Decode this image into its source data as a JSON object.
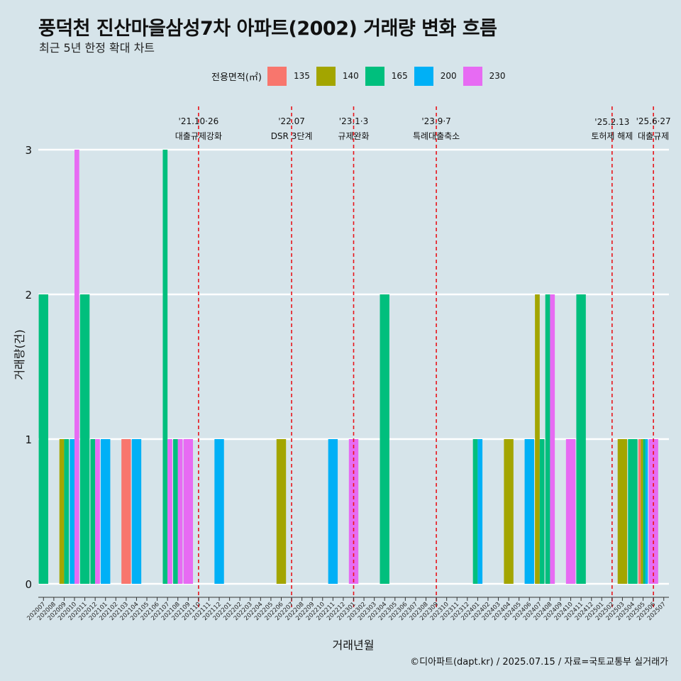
{
  "title": "풍덕천 진산마을삼성7차 아파트(2002) 거래량 변화 흐름",
  "subtitle": "최근 5년 한정 확대 차트",
  "footer": "©디아파트(dapt.kr) / 2025.07.15 / 자료=국토교통부 실거래가",
  "legend": {
    "title": "전용면적(㎡)",
    "items": [
      {
        "label": "135",
        "color": "#f8766d"
      },
      {
        "label": "140",
        "color": "#a3a500"
      },
      {
        "label": "165",
        "color": "#00bf7d"
      },
      {
        "label": "200",
        "color": "#00b0f6"
      },
      {
        "label": "230",
        "color": "#e76bf3"
      }
    ]
  },
  "chart_data": {
    "type": "bar",
    "xlabel": "거래년월",
    "ylabel": "거래량(건)",
    "ylim": [
      0,
      3
    ],
    "yticks": [
      0,
      1,
      2,
      3
    ],
    "grid": true,
    "legend_position": "top",
    "categories": [
      "202007",
      "202008",
      "202009",
      "202010",
      "202011",
      "202012",
      "202101",
      "202102",
      "202103",
      "202104",
      "202105",
      "202106",
      "202107",
      "202108",
      "202109",
      "202110",
      "202111",
      "202112",
      "202201",
      "202202",
      "202203",
      "202204",
      "202205",
      "202206",
      "202207",
      "202208",
      "202209",
      "202210",
      "202211",
      "202212",
      "202301",
      "202302",
      "202303",
      "202304",
      "202305",
      "202306",
      "202307",
      "202308",
      "202309",
      "202310",
      "202311",
      "202312",
      "202401",
      "202402",
      "202403",
      "202404",
      "202405",
      "202406",
      "202407",
      "202408",
      "202409",
      "202410",
      "202411",
      "202412",
      "202501",
      "202502",
      "202503",
      "202504",
      "202505",
      "202506",
      "202507"
    ],
    "series": [
      {
        "name": "135",
        "color": "#f8766d",
        "points": [
          {
            "x": "202103",
            "y": 1
          },
          {
            "x": "202505",
            "y": 1
          }
        ]
      },
      {
        "name": "140",
        "color": "#a3a500",
        "points": [
          {
            "x": "202009",
            "y": 1
          },
          {
            "x": "202206",
            "y": 1
          },
          {
            "x": "202404",
            "y": 1
          },
          {
            "x": "202407",
            "y": 2
          },
          {
            "x": "202503",
            "y": 1
          },
          {
            "x": "202505",
            "y": 1
          }
        ]
      },
      {
        "name": "165",
        "color": "#00bf7d",
        "points": [
          {
            "x": "202007",
            "y": 2
          },
          {
            "x": "202009",
            "y": 1
          },
          {
            "x": "202011",
            "y": 2
          },
          {
            "x": "202012",
            "y": 1
          },
          {
            "x": "202107",
            "y": 3
          },
          {
            "x": "202108",
            "y": 1
          },
          {
            "x": "202304",
            "y": 2
          },
          {
            "x": "202401",
            "y": 1
          },
          {
            "x": "202407",
            "y": 1
          },
          {
            "x": "202408",
            "y": 2
          },
          {
            "x": "202411",
            "y": 2
          },
          {
            "x": "202504",
            "y": 1
          },
          {
            "x": "202505",
            "y": 1
          }
        ]
      },
      {
        "name": "200",
        "color": "#00b0f6",
        "points": [
          {
            "x": "202010",
            "y": 1
          },
          {
            "x": "202101",
            "y": 1
          },
          {
            "x": "202104",
            "y": 1
          },
          {
            "x": "202112",
            "y": 1
          },
          {
            "x": "202211",
            "y": 1
          },
          {
            "x": "202401",
            "y": 1
          },
          {
            "x": "202406",
            "y": 1
          },
          {
            "x": "202505",
            "y": 1
          }
        ]
      },
      {
        "name": "230",
        "color": "#e76bf3",
        "points": [
          {
            "x": "202010",
            "y": 3
          },
          {
            "x": "202012",
            "y": 1
          },
          {
            "x": "202107",
            "y": 1
          },
          {
            "x": "202108",
            "y": 1
          },
          {
            "x": "202109",
            "y": 1
          },
          {
            "x": "202301",
            "y": 1
          },
          {
            "x": "202408",
            "y": 2
          },
          {
            "x": "202410",
            "y": 1
          },
          {
            "x": "202506",
            "y": 1
          }
        ]
      }
    ],
    "events": [
      {
        "x": "202110",
        "date": "'21.10·26",
        "label": "대출규제강화"
      },
      {
        "x": "202207",
        "date": "'22.07",
        "label": "DSR 3단계"
      },
      {
        "x": "202301",
        "date": "'23.1·3",
        "label": "규제완화"
      },
      {
        "x": "202309",
        "date": "'23.9·7",
        "label": "특례대출축소"
      },
      {
        "x": "202502",
        "date": "'25.2.13",
        "label": "토허제 해제"
      },
      {
        "x": "202506",
        "date": "'25.6·27",
        "label": "대출규제"
      }
    ]
  }
}
